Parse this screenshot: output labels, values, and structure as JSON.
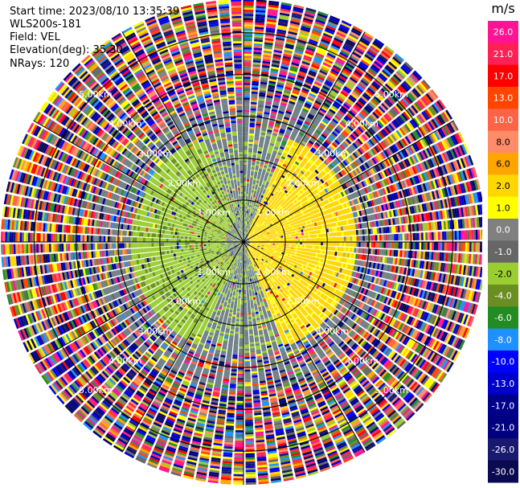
{
  "info": {
    "start_time": "Start time: 2023/08/10 13:35:39",
    "instrument": "WLS200s-181",
    "field": "Field: VEL",
    "elevation": "Elevation(deg): 35.30",
    "nrays": "NRays: 120"
  },
  "chart_data": {
    "type": "heatmap",
    "projection": "polar-ppi",
    "field": "VEL",
    "n_rays": 120,
    "elevation_deg": 35.3,
    "range_rings_km": [
      1.0,
      2.0,
      3.0,
      4.0,
      5.0
    ],
    "range_ring_labels": [
      "1.00km",
      "2.00km",
      "3.00km",
      "4.00km",
      "5.00km"
    ],
    "max_range_km": 5.8,
    "azimuth_spokes_deg": [
      0,
      30,
      60,
      90,
      120,
      150,
      180,
      210,
      240,
      270,
      300,
      330
    ],
    "colorbar": {
      "unit": "m/s",
      "tick_labels": [
        "26.0",
        "21.0",
        "17.0",
        "13.0",
        "10.0",
        "8.0",
        "6.0",
        "2.0",
        "1.0",
        "0.0",
        "-1.0",
        "-2.0",
        "-4.0",
        "-6.0",
        "-8.0",
        "-10.0",
        "-13.0",
        "-17.0",
        "-21.0",
        "-26.0",
        "-30.0"
      ],
      "colors": [
        "#ff1493",
        "#ff2055",
        "#ff0000",
        "#ff4500",
        "#ff6347",
        "#ff8c69",
        "#ffa500",
        "#ffd700",
        "#ffff00",
        "#808080",
        "#666666",
        "#9acd32",
        "#6b8e23",
        "#228b22",
        "#1e90ff",
        "#0000ff",
        "#0000cd",
        "#00008b",
        "#000080",
        "#191970",
        "#0a0a50"
      ]
    },
    "pattern": {
      "inner_range_km": 2.7,
      "positive_zone_azimuth_deg": [
        25,
        160
      ],
      "positive_color": "#ffd700",
      "negative_zone_azimuth_deg": [
        205,
        340
      ],
      "negative_color": "#9acd32",
      "near_zero_color": "#6e7f87",
      "far_field": "noise"
    }
  }
}
